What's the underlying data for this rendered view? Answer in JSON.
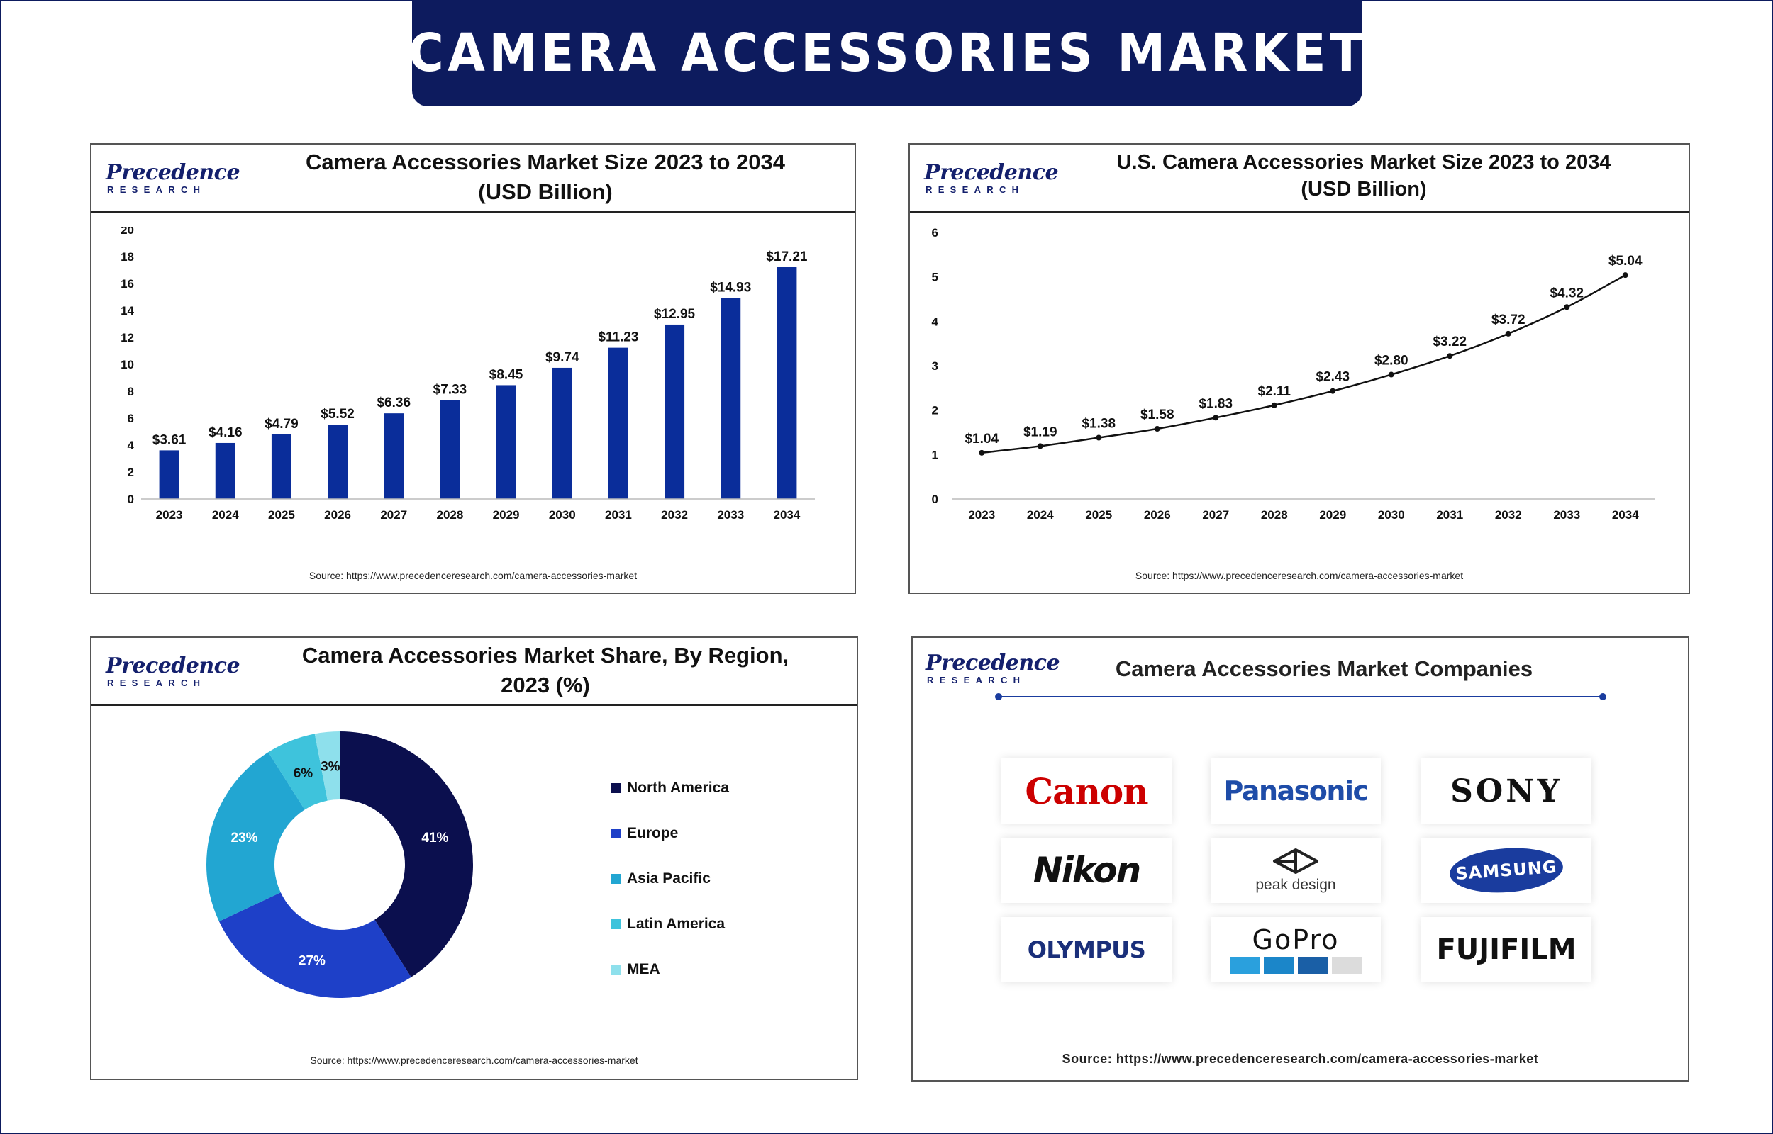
{
  "banner": {
    "title": "CAMERA ACCESSORIES MARKET"
  },
  "logo": {
    "name": "Precedence",
    "subtitle": "RESEARCH"
  },
  "colors": {
    "navy": "#0d1b5e",
    "bar": "#0a2d9a",
    "line": "#111111",
    "region": [
      "#0b0f4e",
      "#1e40c8",
      "#22a6d2",
      "#3ec3dc",
      "#8ee0ec"
    ]
  },
  "panels": {
    "global": {
      "title_line1": "Camera Accessories Market Size 2023 to 2034",
      "title_line2": "(USD Billion)",
      "source": "Source: https://www.precedenceresearch.com/camera-accessories-market"
    },
    "us": {
      "title_line1": "U.S. Camera Accessories Market Size 2023 to 2034",
      "title_line2": "(USD Billion)",
      "source": "Source: https://www.precedenceresearch.com/camera-accessories-market"
    },
    "region": {
      "title_line1": "Camera Accessories Market Share, By Region,",
      "title_line2": "2023 (%)",
      "source": "Source: https://www.precedenceresearch.com/camera-accessories-market"
    },
    "companies": {
      "title": "Camera Accessories Market Companies",
      "source": "Source: https://www.precedenceresearch.com/camera-accessories-market",
      "names": [
        "Canon",
        "Panasonic",
        "SONY",
        "Nikon",
        "peak design",
        "SAMSUNG",
        "OLYMPUS",
        "GoPro",
        "FUJIFILM"
      ]
    }
  },
  "chart_data": [
    {
      "type": "bar",
      "title": "Camera Accessories Market Size 2023 to 2034 (USD Billion)",
      "categories": [
        "2023",
        "2024",
        "2025",
        "2026",
        "2027",
        "2028",
        "2029",
        "2030",
        "2031",
        "2032",
        "2033",
        "2034"
      ],
      "values": [
        3.61,
        4.16,
        4.79,
        5.52,
        6.36,
        7.33,
        8.45,
        9.74,
        11.23,
        12.95,
        14.93,
        17.21
      ],
      "labels": [
        "$3.61",
        "$4.16",
        "$4.79",
        "$5.52",
        "$6.36",
        "$7.33",
        "$8.45",
        "$9.74",
        "$11.23",
        "$12.95",
        "$14.93",
        "$17.21"
      ],
      "ylim": [
        0,
        20
      ],
      "yticks": [
        "0",
        "2",
        "4",
        "6",
        "8",
        "10",
        "12",
        "14",
        "16",
        "18",
        "20"
      ],
      "grid": false
    },
    {
      "type": "line",
      "title": "U.S. Camera Accessories Market Size 2023 to 2034 (USD Billion)",
      "categories": [
        "2023",
        "2024",
        "2025",
        "2026",
        "2027",
        "2028",
        "2029",
        "2030",
        "2031",
        "2032",
        "2033",
        "2034"
      ],
      "values": [
        1.04,
        1.19,
        1.38,
        1.58,
        1.83,
        2.11,
        2.43,
        2.8,
        3.22,
        3.72,
        4.32,
        5.04
      ],
      "labels": [
        "$1.04",
        "$1.19",
        "$1.38",
        "$1.58",
        "$1.83",
        "$2.11",
        "$2.43",
        "$2.80",
        "$3.22",
        "$3.72",
        "$4.32",
        "$5.04"
      ],
      "ylim": [
        0,
        6
      ],
      "yticks": [
        "0",
        "1",
        "2",
        "3",
        "4",
        "5",
        "6"
      ],
      "grid": false
    },
    {
      "type": "pie",
      "title": "Camera Accessories Market Share, By Region, 2023 (%)",
      "categories": [
        "North America",
        "Europe",
        "Asia Pacific",
        "Latin America",
        "MEA"
      ],
      "values": [
        41,
        27,
        23,
        6,
        3
      ],
      "labels": [
        "41%",
        "27%",
        "23%",
        "6%",
        "3%"
      ],
      "legend": "right"
    }
  ]
}
